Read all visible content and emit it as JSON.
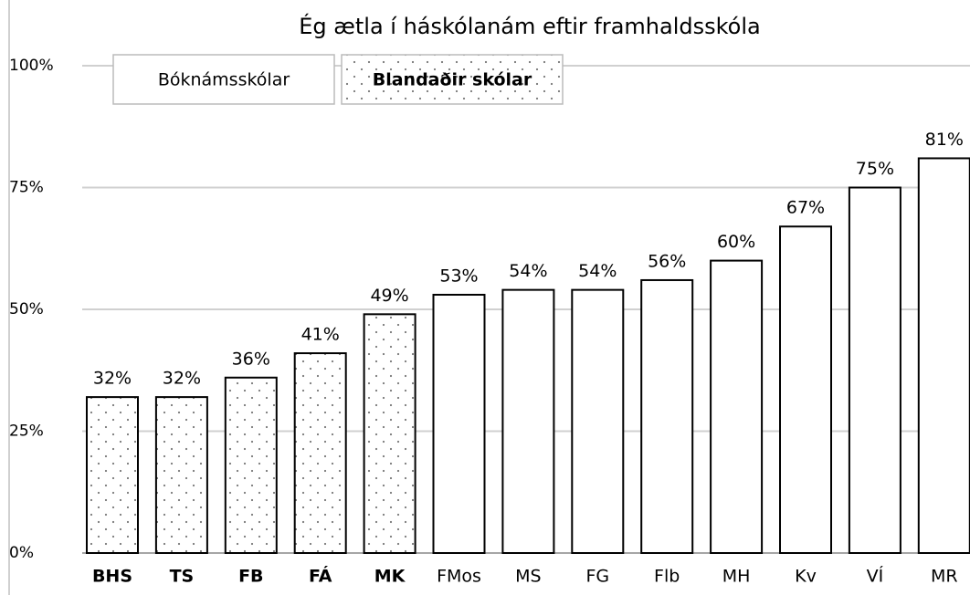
{
  "chart_data": {
    "type": "bar",
    "title": "Ég ætla í háskólanám eftir framhaldsskóla",
    "categories": [
      "BHS",
      "TS",
      "FB",
      "FÁ",
      "MK",
      "FMos",
      "MS",
      "FG",
      "Flb",
      "MH",
      "Kv",
      "VÍ",
      "MR"
    ],
    "series": [
      {
        "name": "Bóknámsskólar",
        "color": "#ffffff",
        "pattern": "none",
        "values": [
          null,
          null,
          null,
          null,
          null,
          53,
          54,
          54,
          56,
          60,
          67,
          75,
          81
        ],
        "value_labels": [
          null,
          null,
          null,
          null,
          null,
          "53%",
          "54%",
          "54%",
          "56%",
          "60%",
          "67%",
          "75%",
          "81%"
        ]
      },
      {
        "name": "Blandaðir skólar",
        "color": "#ffffff",
        "pattern": "dots",
        "values": [
          32,
          32,
          36,
          41,
          49,
          null,
          null,
          null,
          null,
          null,
          null,
          null,
          null
        ],
        "value_labels": [
          "32%",
          "32%",
          "36%",
          "41%",
          "49%",
          null,
          null,
          null,
          null,
          null,
          null,
          null,
          null
        ]
      }
    ],
    "ylim": [
      0,
      100
    ],
    "yticks": [
      {
        "value": 0,
        "label": "0%"
      },
      {
        "value": 25,
        "label": "25%"
      },
      {
        "value": 50,
        "label": "50%"
      },
      {
        "value": 75,
        "label": "75%"
      },
      {
        "value": 100,
        "label": "100%"
      }
    ],
    "grid": true,
    "legend": "top-left"
  }
}
